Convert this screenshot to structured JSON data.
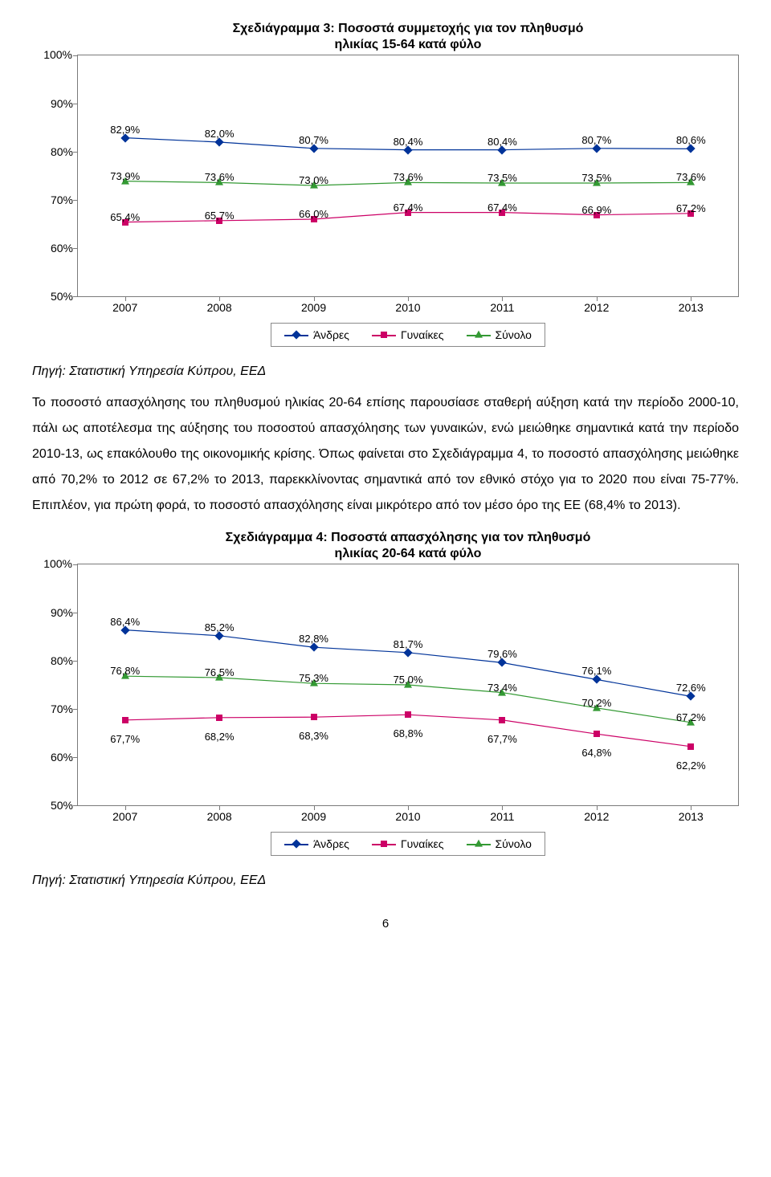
{
  "colors": {
    "andres": "#003399",
    "gynaikes": "#cc0066",
    "synolo": "#339933",
    "axis": "#7a7a7a",
    "bg": "#ffffff"
  },
  "chart1": {
    "title_line1": "Σχεδιάγραμμα 3: Ποσοστά συμμετοχής για τον πληθυσμό",
    "title_line2": "ηλικίας 15-64 κατά φύλο",
    "title_fontsize": 16,
    "years": [
      "2007",
      "2008",
      "2009",
      "2010",
      "2011",
      "2012",
      "2013"
    ],
    "ymin": 50,
    "ymax": 100,
    "ystep": 10,
    "ytick_labels": [
      "50%",
      "60%",
      "70%",
      "80%",
      "90%",
      "100%"
    ],
    "outer_ylabel": "100%",
    "series": {
      "andres": {
        "label": "Άνδρες",
        "values": [
          82.9,
          82.0,
          80.7,
          80.4,
          80.4,
          80.7,
          80.6
        ],
        "labels": [
          "82,9%",
          "82,0%",
          "80,7%",
          "80,4%",
          "80,4%",
          "80,7%",
          "80,6%"
        ],
        "marker": "diamond",
        "label_dy": -18
      },
      "synolo": {
        "label": "Σύνολο",
        "values": [
          73.9,
          73.6,
          73.0,
          73.6,
          73.5,
          73.5,
          73.6
        ],
        "labels": [
          "73,9%",
          "73,6%",
          "73,0%",
          "73,6%",
          "73,5%",
          "73,5%",
          "73,6%"
        ],
        "marker": "triangle",
        "label_dy": -14
      },
      "gynaikes": {
        "label": "Γυναίκες",
        "values": [
          65.4,
          65.7,
          66.0,
          67.4,
          67.4,
          66.9,
          67.2
        ],
        "labels": [
          "65,4%",
          "65,7%",
          "66,0%",
          "67,4%",
          "67,4%",
          "66,9%",
          "67,2%"
        ],
        "marker": "square",
        "label_dy": -14
      }
    },
    "legend_order": [
      "andres",
      "gynaikes",
      "synolo"
    ]
  },
  "source1": "Πηγή: Στατιστική Υπηρεσία Κύπρου, ΕΕΔ",
  "paragraph": "Το ποσοστό απασχόλησης του πληθυσμού ηλικίας 20-64 επίσης παρουσίασε σταθερή αύξηση κατά την περίοδο 2000-10, πάλι ως αποτέλεσμα της αύξησης του ποσοστού απασχόλησης των γυναικών, ενώ μειώθηκε σημαντικά κατά την περίοδο 2010-13, ως επακόλουθο της οικονομικής κρίσης. Όπως φαίνεται στο Σχεδιάγραμμα 4, το ποσοστό απασχόλησης μειώθηκε από 70,2% το 2012 σε 67,2% το 2013, παρεκκλίνοντας σημαντικά από τον εθνικό στόχο για το 2020 που είναι 75-77%. Επιπλέον, για πρώτη φορά, το ποσοστό απασχόλησης είναι μικρότερο από τον μέσο όρο της ΕΕ (68,4% το 2013).",
  "chart2": {
    "title_line1": "Σχεδιάγραμμα 4: Ποσοστά απασχόλησης για τον πληθυσμό",
    "title_line2": "ηλικίας 20-64 κατά φύλο",
    "title_fontsize": 16,
    "years": [
      "2007",
      "2008",
      "2009",
      "2010",
      "2011",
      "2012",
      "2013"
    ],
    "ymin": 50,
    "ymax": 100,
    "ystep": 10,
    "ytick_labels": [
      "50%",
      "60%",
      "70%",
      "80%",
      "90%",
      "100%"
    ],
    "outer_ylabel": "100%",
    "series": {
      "andres": {
        "label": "Άνδρες",
        "values": [
          86.4,
          85.2,
          82.8,
          81.7,
          79.6,
          76.1,
          72.6
        ],
        "labels": [
          "86,4%",
          "85,2%",
          "82,8%",
          "81,7%",
          "79,6%",
          "76,1%",
          "72,6%"
        ],
        "marker": "diamond",
        "label_dy": -18
      },
      "synolo": {
        "label": "Σύνολο",
        "values": [
          76.8,
          76.5,
          75.3,
          75.0,
          73.4,
          70.2,
          67.2
        ],
        "labels": [
          "76,8%",
          "76,5%",
          "75,3%",
          "75,0%",
          "73,4%",
          "70,2%",
          "67,2%"
        ],
        "marker": "triangle",
        "label_dy": -14
      },
      "gynaikes": {
        "label": "Γυναίκες",
        "values": [
          67.7,
          68.2,
          68.3,
          68.8,
          67.7,
          64.8,
          62.2
        ],
        "labels": [
          "67,7%",
          "68,2%",
          "68,3%",
          "68,8%",
          "67,7%",
          "64,8%",
          "62,2%"
        ],
        "marker": "square",
        "label_dy": 16
      }
    },
    "legend_order": [
      "andres",
      "gynaikes",
      "synolo"
    ]
  },
  "source2": "Πηγή: Στατιστική Υπηρεσία Κύπρου, ΕΕΔ",
  "pagenum": "6"
}
